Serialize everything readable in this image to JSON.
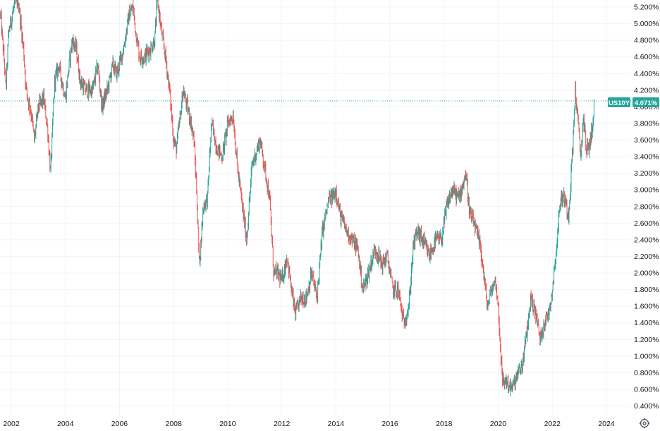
{
  "chart_data": {
    "type": "candlestick",
    "symbol": "US10Y",
    "last_value_label": "4.071%",
    "last_value": 4.071,
    "y_unit": "%",
    "ylim": [
      0.3,
      5.3
    ],
    "xlim": [
      2001.6,
      2024.5
    ],
    "y_ticks": [
      {
        "value": 5.2,
        "label": "5.200%"
      },
      {
        "value": 5.0,
        "label": "5.000%"
      },
      {
        "value": 4.8,
        "label": "4.800%"
      },
      {
        "value": 4.6,
        "label": "4.600%"
      },
      {
        "value": 4.4,
        "label": "4.400%"
      },
      {
        "value": 4.2,
        "label": "4.200%"
      },
      {
        "value": 4.0,
        "label": "4.000%"
      },
      {
        "value": 3.8,
        "label": "3.800%"
      },
      {
        "value": 3.6,
        "label": "3.600%"
      },
      {
        "value": 3.4,
        "label": "3.400%"
      },
      {
        "value": 3.2,
        "label": "3.200%"
      },
      {
        "value": 3.0,
        "label": "3.000%"
      },
      {
        "value": 2.8,
        "label": "2.800%"
      },
      {
        "value": 2.6,
        "label": "2.600%"
      },
      {
        "value": 2.4,
        "label": "2.400%"
      },
      {
        "value": 2.2,
        "label": "2.200%"
      },
      {
        "value": 2.0,
        "label": "2.000%"
      },
      {
        "value": 1.8,
        "label": "1.800%"
      },
      {
        "value": 1.6,
        "label": "1.600%"
      },
      {
        "value": 1.4,
        "label": "1.400%"
      },
      {
        "value": 1.2,
        "label": "1.200%"
      },
      {
        "value": 1.0,
        "label": "1.000%"
      },
      {
        "value": 0.8,
        "label": "0.800%"
      },
      {
        "value": 0.6,
        "label": "0.600%"
      },
      {
        "value": 0.4,
        "label": "0.400%"
      }
    ],
    "x_ticks": [
      {
        "value": 2002,
        "label": "2002"
      },
      {
        "value": 2004,
        "label": "2004"
      },
      {
        "value": 2006,
        "label": "2006"
      },
      {
        "value": 2008,
        "label": "2008"
      },
      {
        "value": 2010,
        "label": "2010"
      },
      {
        "value": 2012,
        "label": "2012"
      },
      {
        "value": 2014,
        "label": "2014"
      },
      {
        "value": 2016,
        "label": "2016"
      },
      {
        "value": 2018,
        "label": "2018"
      },
      {
        "value": 2020,
        "label": "2020"
      },
      {
        "value": 2022,
        "label": "2022"
      },
      {
        "value": 2024,
        "label": "2024"
      }
    ],
    "grid": true,
    "up_color": "#26a69a",
    "down_color": "#ef5350",
    "price_line_color": "#26a69a",
    "series_path": [
      [
        2001.6,
        5.1
      ],
      [
        2001.75,
        4.5
      ],
      [
        2001.8,
        4.2
      ],
      [
        2001.9,
        4.9
      ],
      [
        2002.1,
        5.2
      ],
      [
        2002.25,
        5.3
      ],
      [
        2002.45,
        4.7
      ],
      [
        2002.55,
        4.2
      ],
      [
        2002.75,
        3.9
      ],
      [
        2002.85,
        3.6
      ],
      [
        2003.0,
        4.0
      ],
      [
        2003.2,
        4.1
      ],
      [
        2003.35,
        3.7
      ],
      [
        2003.45,
        3.2
      ],
      [
        2003.6,
        4.3
      ],
      [
        2003.75,
        4.5
      ],
      [
        2004.0,
        4.1
      ],
      [
        2004.1,
        4.4
      ],
      [
        2004.25,
        4.8
      ],
      [
        2004.4,
        4.7
      ],
      [
        2004.55,
        4.3
      ],
      [
        2004.75,
        4.2
      ],
      [
        2005.0,
        4.2
      ],
      [
        2005.2,
        4.5
      ],
      [
        2005.35,
        4.0
      ],
      [
        2005.55,
        4.2
      ],
      [
        2005.75,
        4.5
      ],
      [
        2005.9,
        4.4
      ],
      [
        2006.15,
        4.7
      ],
      [
        2006.35,
        5.1
      ],
      [
        2006.5,
        5.2
      ],
      [
        2006.6,
        4.9
      ],
      [
        2006.75,
        4.6
      ],
      [
        2006.9,
        4.6
      ],
      [
        2007.15,
        4.7
      ],
      [
        2007.3,
        4.8
      ],
      [
        2007.4,
        5.3
      ],
      [
        2007.55,
        4.9
      ],
      [
        2007.7,
        4.6
      ],
      [
        2007.85,
        4.2
      ],
      [
        2008.0,
        3.6
      ],
      [
        2008.1,
        3.5
      ],
      [
        2008.25,
        3.9
      ],
      [
        2008.35,
        4.2
      ],
      [
        2008.5,
        4.0
      ],
      [
        2008.65,
        3.8
      ],
      [
        2008.75,
        3.6
      ],
      [
        2008.85,
        3.0
      ],
      [
        2008.95,
        2.1
      ],
      [
        2009.1,
        2.8
      ],
      [
        2009.25,
        2.9
      ],
      [
        2009.4,
        3.8
      ],
      [
        2009.6,
        3.5
      ],
      [
        2009.8,
        3.4
      ],
      [
        2010.0,
        3.8
      ],
      [
        2010.2,
        3.9
      ],
      [
        2010.35,
        3.3
      ],
      [
        2010.5,
        2.9
      ],
      [
        2010.7,
        2.4
      ],
      [
        2010.9,
        3.3
      ],
      [
        2011.1,
        3.5
      ],
      [
        2011.2,
        3.6
      ],
      [
        2011.4,
        3.2
      ],
      [
        2011.55,
        2.9
      ],
      [
        2011.7,
        2.0
      ],
      [
        2011.85,
        2.0
      ],
      [
        2012.0,
        1.9
      ],
      [
        2012.2,
        2.2
      ],
      [
        2012.35,
        1.8
      ],
      [
        2012.5,
        1.5
      ],
      [
        2012.7,
        1.7
      ],
      [
        2012.9,
        1.7
      ],
      [
        2013.1,
        2.0
      ],
      [
        2013.3,
        1.7
      ],
      [
        2013.5,
        2.5
      ],
      [
        2013.75,
        2.9
      ],
      [
        2013.85,
        2.9
      ],
      [
        2014.0,
        3.0
      ],
      [
        2014.15,
        2.7
      ],
      [
        2014.4,
        2.5
      ],
      [
        2014.6,
        2.4
      ],
      [
        2014.8,
        2.3
      ],
      [
        2015.0,
        1.8
      ],
      [
        2015.2,
        2.0
      ],
      [
        2015.45,
        2.3
      ],
      [
        2015.7,
        2.1
      ],
      [
        2015.9,
        2.2
      ],
      [
        2016.1,
        1.8
      ],
      [
        2016.3,
        1.8
      ],
      [
        2016.5,
        1.4
      ],
      [
        2016.7,
        1.6
      ],
      [
        2016.85,
        2.3
      ],
      [
        2017.0,
        2.5
      ],
      [
        2017.2,
        2.4
      ],
      [
        2017.45,
        2.2
      ],
      [
        2017.7,
        2.4
      ],
      [
        2017.9,
        2.4
      ],
      [
        2018.1,
        2.8
      ],
      [
        2018.3,
        3.0
      ],
      [
        2018.55,
        2.9
      ],
      [
        2018.8,
        3.2
      ],
      [
        2018.95,
        2.7
      ],
      [
        2019.1,
        2.6
      ],
      [
        2019.35,
        2.3
      ],
      [
        2019.6,
        1.6
      ],
      [
        2019.75,
        1.8
      ],
      [
        2019.9,
        1.9
      ],
      [
        2020.0,
        1.6
      ],
      [
        2020.15,
        0.7
      ],
      [
        2020.3,
        0.7
      ],
      [
        2020.5,
        0.6
      ],
      [
        2020.75,
        0.8
      ],
      [
        2020.9,
        0.9
      ],
      [
        2021.1,
        1.4
      ],
      [
        2021.2,
        1.7
      ],
      [
        2021.4,
        1.5
      ],
      [
        2021.55,
        1.2
      ],
      [
        2021.7,
        1.4
      ],
      [
        2021.85,
        1.5
      ],
      [
        2022.0,
        1.8
      ],
      [
        2022.15,
        2.3
      ],
      [
        2022.3,
        2.9
      ],
      [
        2022.45,
        2.9
      ],
      [
        2022.6,
        2.7
      ],
      [
        2022.75,
        3.5
      ],
      [
        2022.85,
        4.2
      ],
      [
        2022.95,
        3.8
      ],
      [
        2023.05,
        3.4
      ],
      [
        2023.15,
        3.9
      ],
      [
        2023.25,
        3.5
      ],
      [
        2023.35,
        3.5
      ],
      [
        2023.5,
        3.8
      ],
      [
        2023.55,
        4.071
      ]
    ]
  },
  "settings_icon": "gear-icon"
}
